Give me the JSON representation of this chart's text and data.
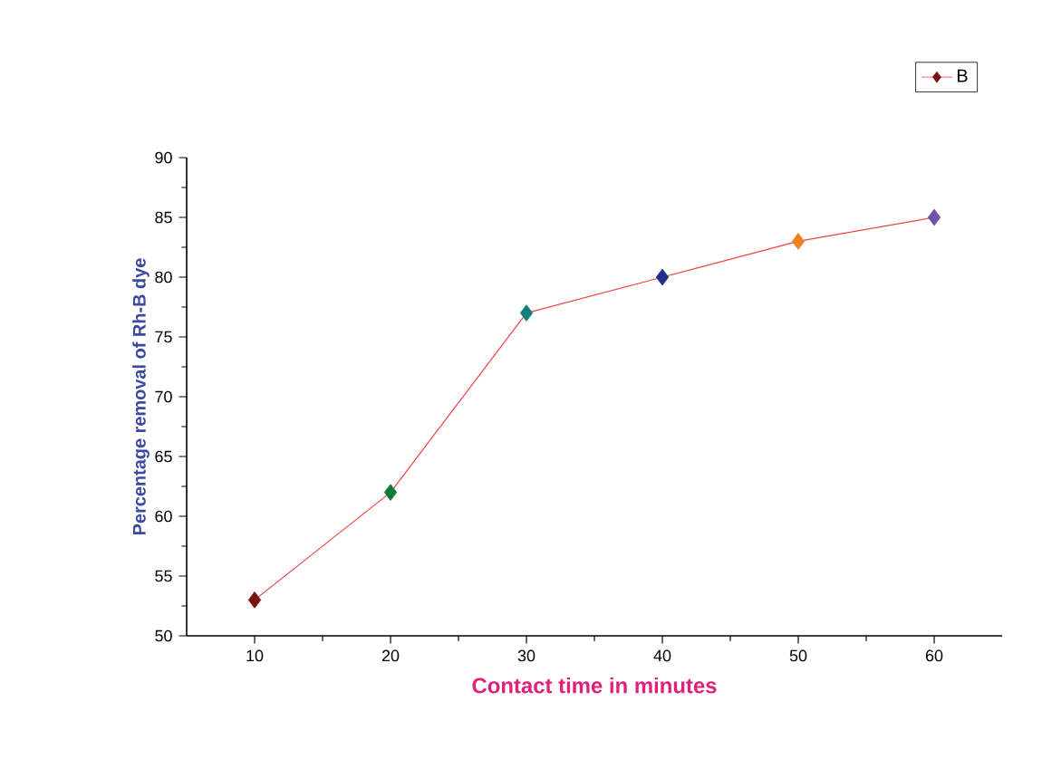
{
  "chart_data": {
    "type": "line",
    "xlabel": "Contact time in minutes",
    "ylabel": "Percentage removal of Rh-B dye",
    "x": [
      10,
      20,
      30,
      40,
      50,
      60
    ],
    "series": [
      {
        "name": "B",
        "color": "#f04040",
        "colors": [
          "#7b1010",
          "#0e7a3a",
          "#0e8080",
          "#262b8c",
          "#f08020",
          "#7050a8"
        ],
        "values": [
          53,
          62,
          77,
          80,
          83,
          85
        ]
      }
    ],
    "xlim": [
      5,
      65
    ],
    "xticks": [
      10,
      20,
      30,
      40,
      50,
      60
    ],
    "ylim": [
      50,
      90
    ],
    "yticks": [
      50,
      55,
      60,
      65,
      70,
      75,
      80,
      85,
      90
    ],
    "marker": "diamond",
    "line_style": "solid",
    "legend": "top right",
    "grid": false
  }
}
